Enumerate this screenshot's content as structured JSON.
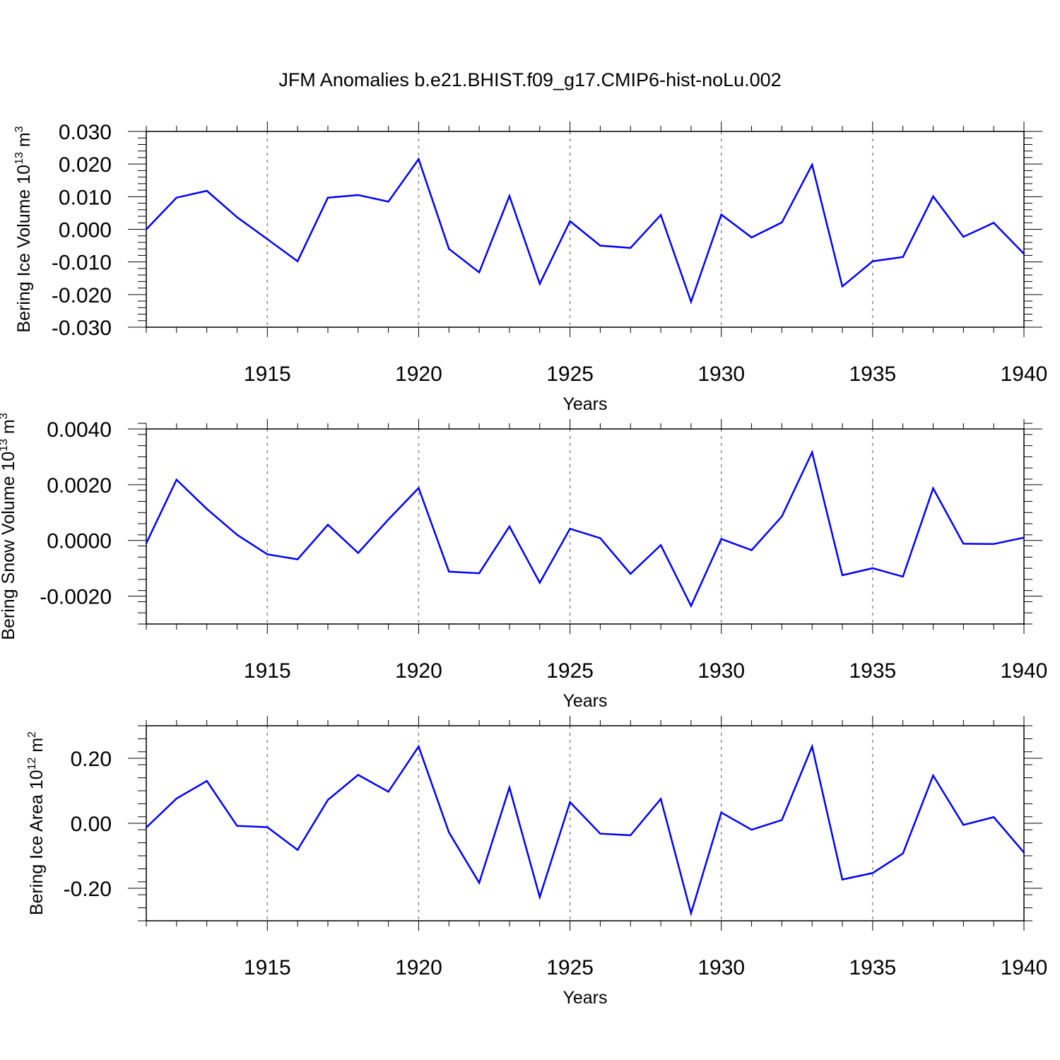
{
  "title": "JFM Anomalies b.e21.BHIST.f09_g17.CMIP6-hist-noLu.002",
  "line_color": "#0000ff",
  "chart_data": [
    {
      "type": "line",
      "xlabel": "Years",
      "ylabel_main": "Bering Ice Volume 10",
      "ylabel_sup": "13",
      "ylabel_unit": " m",
      "ylabel_unit_sup": "3",
      "xlim": [
        1911,
        1940
      ],
      "ylim": [
        -0.03,
        0.03
      ],
      "xticks": [
        1915,
        1920,
        1925,
        1930,
        1935,
        1940
      ],
      "yticks": [
        -0.03,
        -0.02,
        -0.01,
        0.0,
        0.01,
        0.02,
        0.03
      ],
      "ytick_labels": [
        "-0.030",
        "-0.020",
        "-0.010",
        "0.000",
        "0.010",
        "0.020",
        "0.030"
      ],
      "grid": "dashed vertical at major x ticks",
      "x": [
        1911,
        1912,
        1913,
        1914,
        1915,
        1916,
        1917,
        1918,
        1919,
        1920,
        1921,
        1922,
        1923,
        1924,
        1925,
        1926,
        1927,
        1928,
        1929,
        1930,
        1931,
        1932,
        1933,
        1934,
        1935,
        1936,
        1937,
        1938,
        1939,
        1940
      ],
      "values": [
        0.0,
        0.0097,
        0.0118,
        0.0037,
        -0.003,
        -0.0098,
        0.0097,
        0.0105,
        0.0085,
        0.0215,
        -0.006,
        -0.0132,
        0.0102,
        -0.0167,
        0.0025,
        -0.005,
        -0.0057,
        0.0044,
        -0.0222,
        0.0045,
        -0.0025,
        0.0021,
        0.0198,
        -0.0175,
        -0.0098,
        -0.0085,
        0.0101,
        -0.0023,
        0.002,
        -0.0075
      ]
    },
    {
      "type": "line",
      "xlabel": "Years",
      "ylabel_main": "Bering Snow Volume 10",
      "ylabel_sup": "13",
      "ylabel_unit": " m",
      "ylabel_unit_sup": "3",
      "xlim": [
        1911,
        1940
      ],
      "ylim": [
        -0.003,
        0.004
      ],
      "xticks": [
        1915,
        1920,
        1925,
        1930,
        1935,
        1940
      ],
      "yticks": [
        -0.002,
        0.0,
        0.002,
        0.004
      ],
      "ytick_labels": [
        "-0.0020",
        "0.0000",
        "0.0020",
        "0.0040"
      ],
      "grid": "dashed vertical at major x ticks",
      "x": [
        1911,
        1912,
        1913,
        1914,
        1915,
        1916,
        1917,
        1918,
        1919,
        1920,
        1921,
        1922,
        1923,
        1924,
        1925,
        1926,
        1927,
        1928,
        1929,
        1930,
        1931,
        1932,
        1933,
        1934,
        1935,
        1936,
        1937,
        1938,
        1939,
        1940
      ],
      "values": [
        -0.0001,
        0.00218,
        0.00113,
        0.0002,
        -0.0005,
        -0.00068,
        0.00056,
        -0.00045,
        0.00075,
        0.00188,
        -0.00112,
        -0.00118,
        0.0005,
        -0.00152,
        0.00042,
        8e-05,
        -0.0012,
        -0.00017,
        -0.00235,
        5e-05,
        -0.00035,
        0.00086,
        0.00316,
        -0.00125,
        -0.001,
        -0.0013,
        0.00187,
        -0.00012,
        -0.00013,
        0.0001
      ]
    },
    {
      "type": "line",
      "xlabel": "Years",
      "ylabel_main": "Bering Ice Area 10",
      "ylabel_sup": "12",
      "ylabel_unit": " m",
      "ylabel_unit_sup": "2",
      "xlim": [
        1911,
        1940
      ],
      "ylim": [
        -0.3,
        0.3
      ],
      "xticks": [
        1915,
        1920,
        1925,
        1930,
        1935,
        1940
      ],
      "yticks": [
        -0.2,
        0.0,
        0.2
      ],
      "ytick_labels": [
        "-0.20",
        "0.00",
        "0.20"
      ],
      "grid": "dashed vertical at major x ticks",
      "x": [
        1911,
        1912,
        1913,
        1914,
        1915,
        1916,
        1917,
        1918,
        1919,
        1920,
        1921,
        1922,
        1923,
        1924,
        1925,
        1926,
        1927,
        1928,
        1929,
        1930,
        1931,
        1932,
        1933,
        1934,
        1935,
        1936,
        1937,
        1938,
        1939,
        1940
      ],
      "values": [
        -0.013,
        0.076,
        0.13,
        -0.008,
        -0.012,
        -0.082,
        0.072,
        0.149,
        0.097,
        0.236,
        -0.028,
        -0.183,
        0.11,
        -0.227,
        0.065,
        -0.032,
        -0.037,
        0.075,
        -0.277,
        0.033,
        -0.02,
        0.01,
        0.236,
        -0.173,
        -0.153,
        -0.093,
        0.147,
        -0.005,
        0.019,
        -0.09
      ]
    }
  ]
}
